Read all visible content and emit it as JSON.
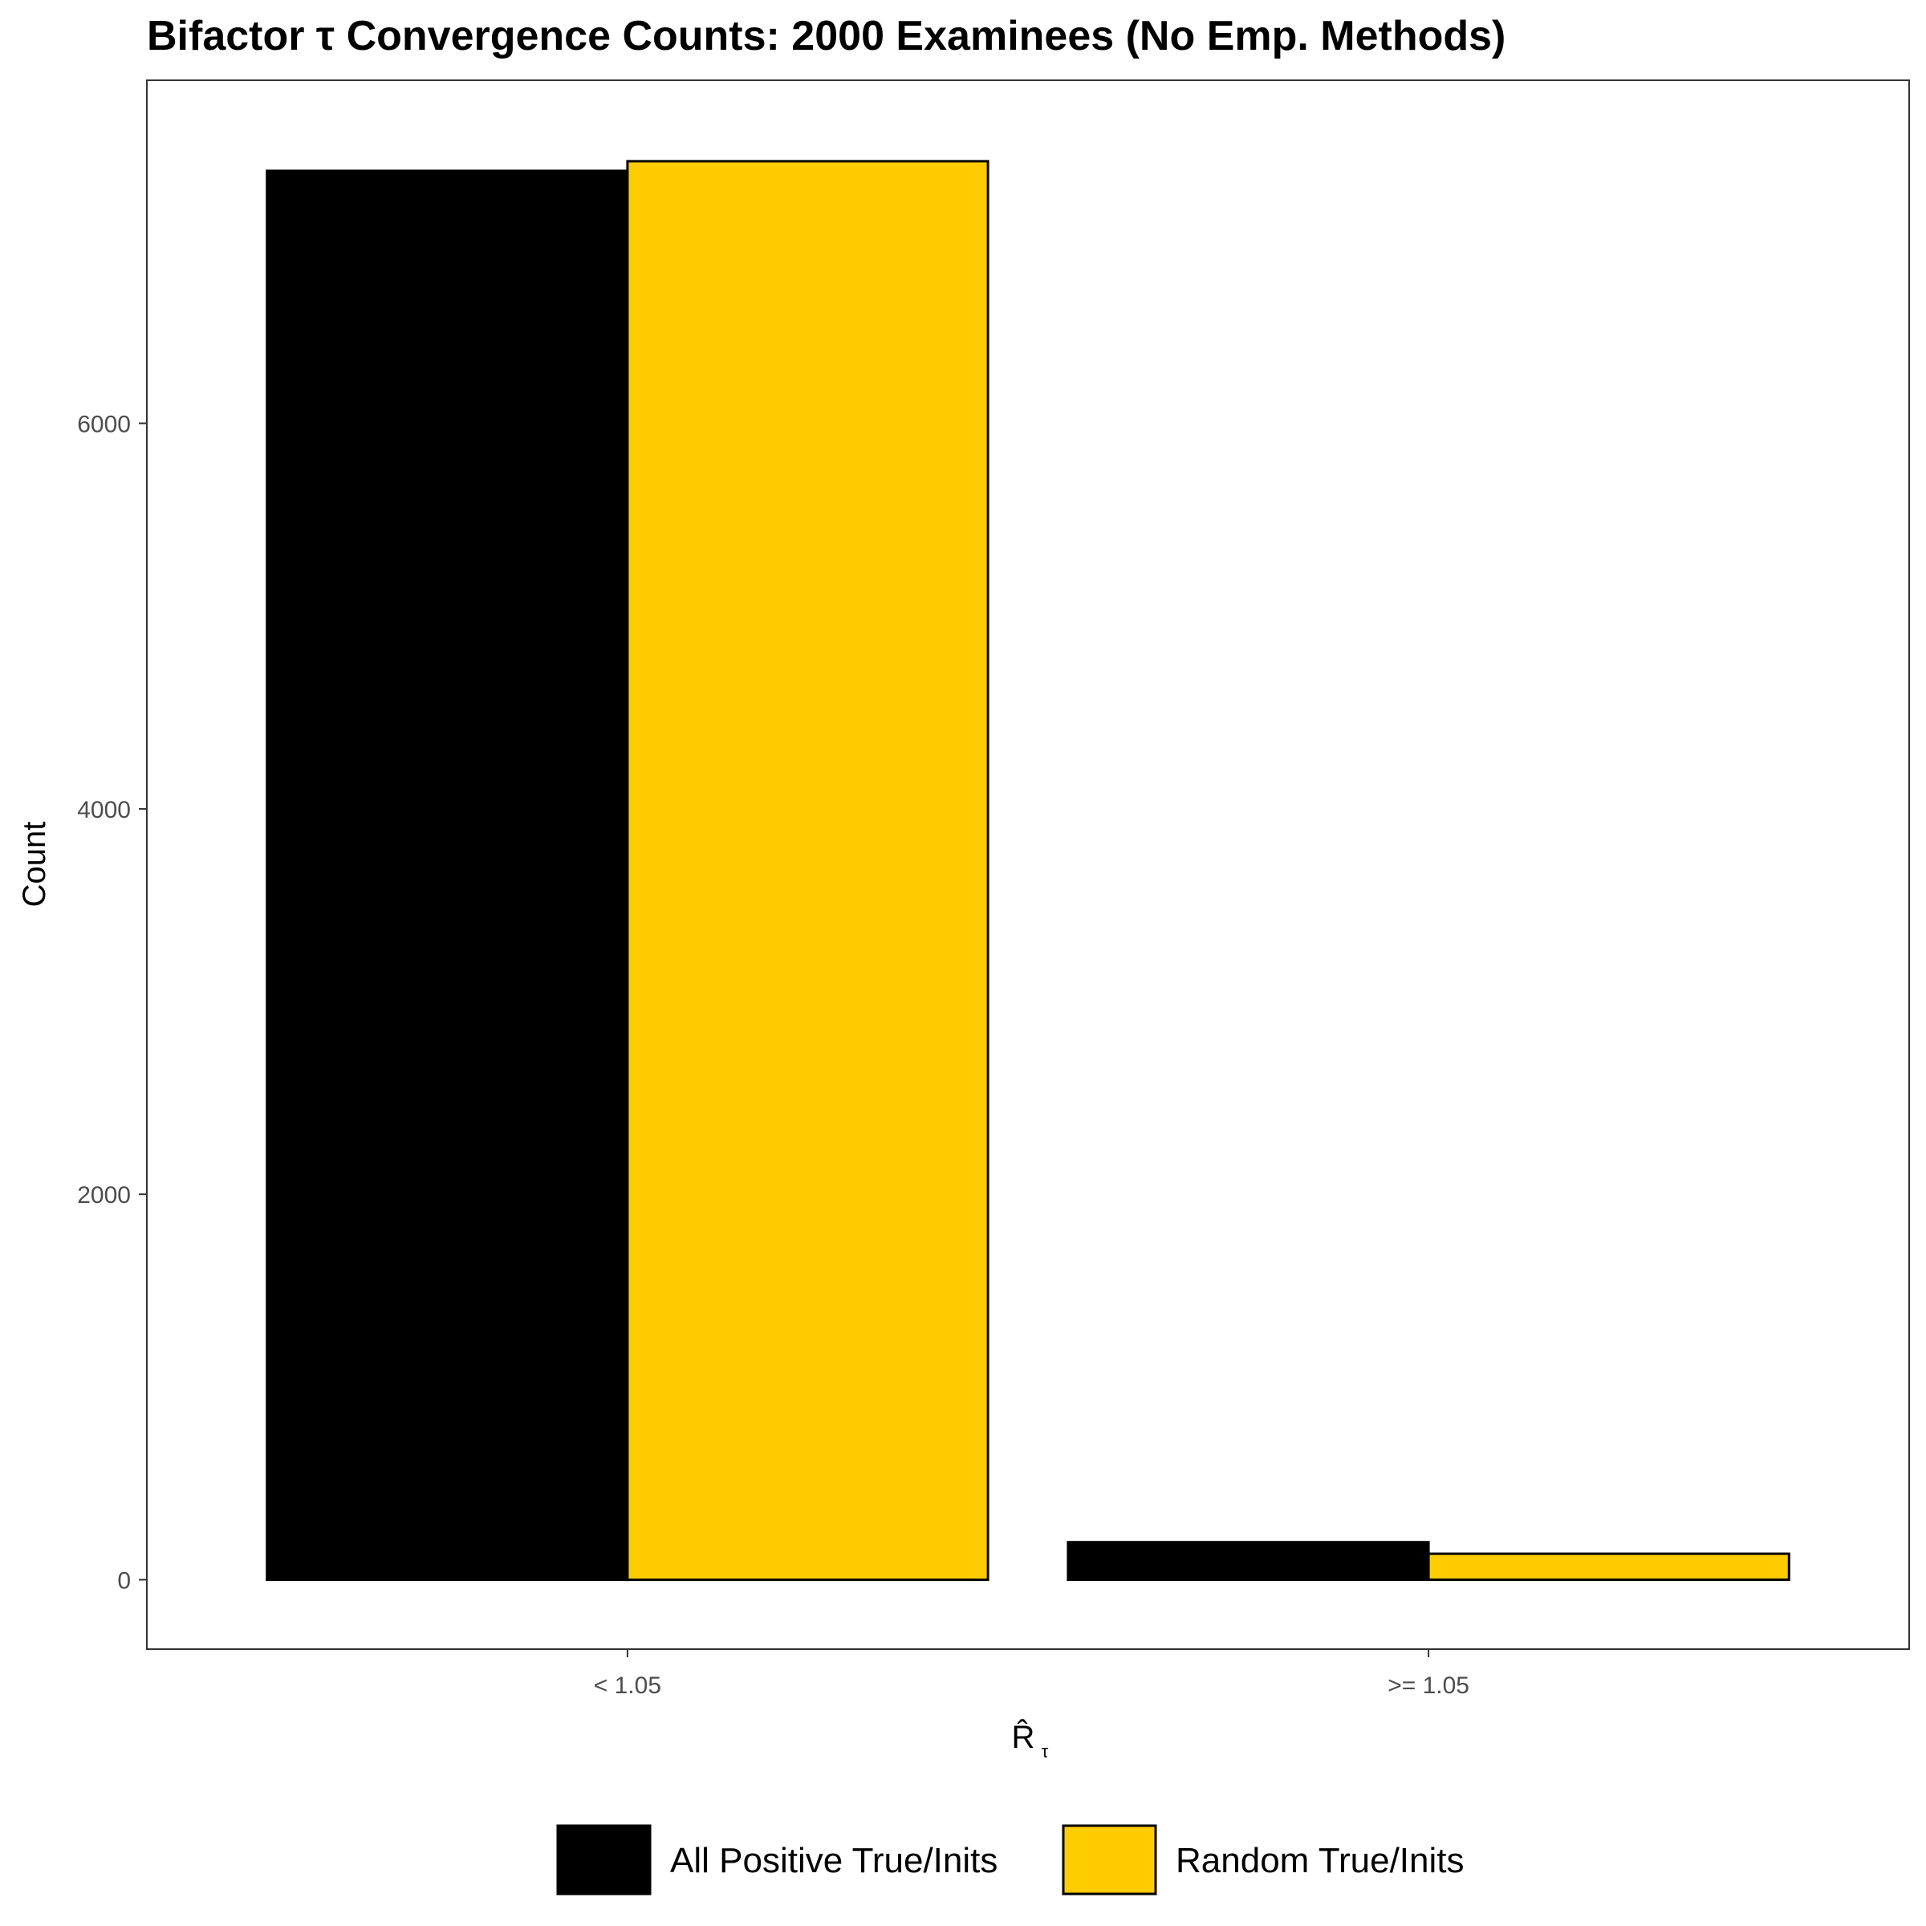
{
  "chart_data": {
    "type": "bar",
    "title": "Bifactor τ Convergence Counts: 2000 Examinees (No Emp. Methods)",
    "xlabel": "R̂",
    "xlabel_subscript": "τ",
    "ylabel": "Count",
    "categories": [
      "< 1.05",
      ">= 1.05"
    ],
    "series": [
      {
        "name": "All Positive True/Inits",
        "color": "#000000",
        "values": [
          7310,
          195
        ]
      },
      {
        "name": "Random True/Inits",
        "color": "#FFCC00",
        "values": [
          7360,
          135
        ]
      }
    ],
    "ylim": [
      -360,
      7780
    ],
    "yticks": [
      0,
      2000,
      4000,
      6000
    ],
    "grid": false,
    "legend_position": "bottom"
  }
}
